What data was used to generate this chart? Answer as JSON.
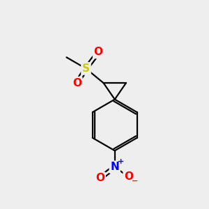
{
  "background_color": "#eeeeee",
  "bond_color": "#000000",
  "bond_width": 1.6,
  "atom_colors": {
    "S": "#cccc00",
    "O": "#ff0000",
    "N": "#0000ff",
    "C": "#000000"
  },
  "font_size_atoms": 11,
  "font_size_charge": 8,
  "figsize": [
    3.0,
    3.0
  ],
  "dpi": 100
}
